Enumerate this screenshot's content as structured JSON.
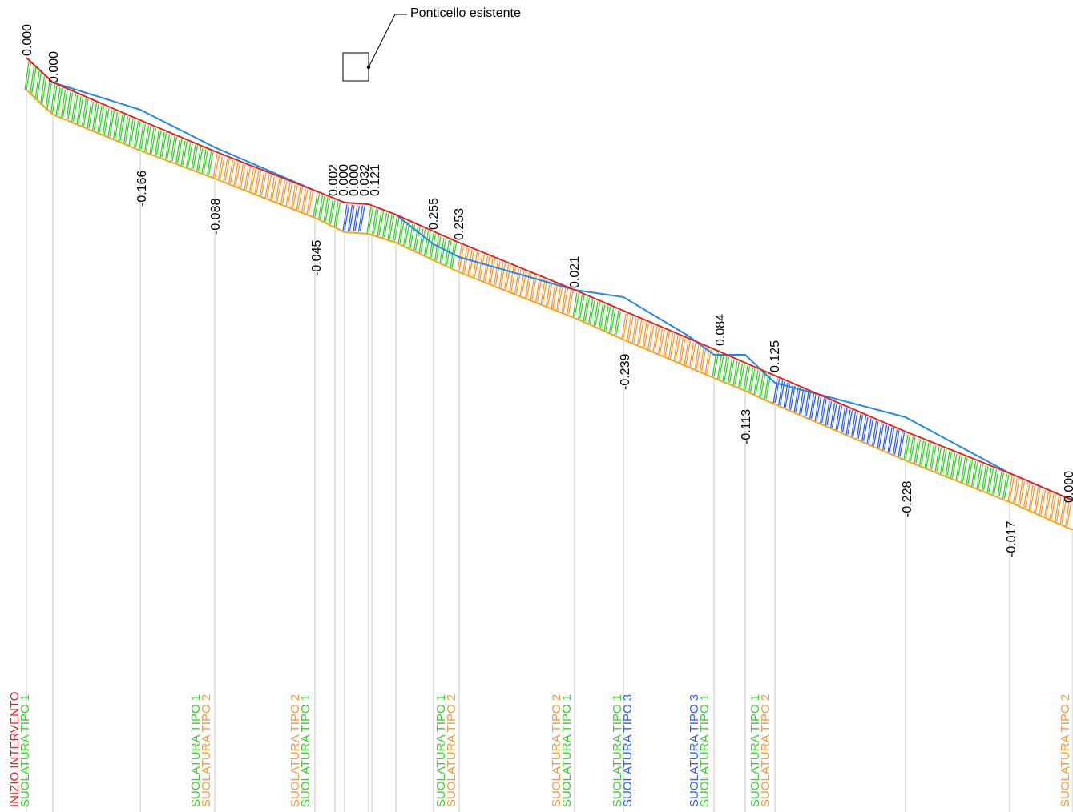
{
  "callout": {
    "label": "Ponticello esistente"
  },
  "colors": {
    "design_line": "#e8201a",
    "existing_line": "#1e88f0",
    "bottom_line": "#f3a41b",
    "tipo1": "#37d12a",
    "tipo2": "#f79a36",
    "tipo3": "#2f5ff2",
    "start": "#e8201a",
    "guide": "#cfcfcf"
  },
  "upper_values": [
    "0.000",
    "0.000",
    "0.002",
    "0.000",
    "0.000",
    "0.032",
    "0.121",
    "0.255",
    "0.253",
    "0.021",
    "0.084",
    "0.125",
    "0.000"
  ],
  "lower_values": [
    "-0.166",
    "-0.088",
    "-0.045",
    "-0.239",
    "-0.113",
    "-0.228",
    "-0.017"
  ],
  "bottom_labels": [
    {
      "lines": [
        {
          "text": "INIZIO INTERVENTO",
          "color": "start"
        },
        {
          "text": "SUOLATURA TIPO 1",
          "color": "tipo1"
        }
      ]
    },
    {
      "lines": [
        {
          "text": "SUOLATURA TIPO 1",
          "color": "tipo1"
        },
        {
          "text": "SUOLATURA TIPO 2",
          "color": "tipo2"
        }
      ]
    },
    {
      "lines": [
        {
          "text": "SUOLATURA TIPO 2",
          "color": "tipo2"
        },
        {
          "text": "SUOLATURA TIPO 1",
          "color": "tipo1"
        }
      ]
    },
    {
      "lines": [
        {
          "text": "SUOLATURA TIPO 1",
          "color": "tipo1"
        },
        {
          "text": "SUOLATURA TIPO 2",
          "color": "tipo2"
        }
      ]
    },
    {
      "lines": [
        {
          "text": "SUOLATURA TIPO 2",
          "color": "tipo2"
        },
        {
          "text": "SUOLATURA TIPO 1",
          "color": "tipo1"
        }
      ]
    },
    {
      "lines": [
        {
          "text": "SUOLATURA TIPO 1",
          "color": "tipo1"
        },
        {
          "text": "SUOLATURA TIPO 3",
          "color": "tipo3"
        }
      ]
    },
    {
      "lines": [
        {
          "text": "SUOLATURA TIPO 3",
          "color": "tipo3"
        },
        {
          "text": "SUOLATURA TIPO 1",
          "color": "tipo1"
        }
      ]
    },
    {
      "lines": [
        {
          "text": "SUOLATURA TIPO 1",
          "color": "tipo1"
        },
        {
          "text": "SUOLATURA TIPO 2",
          "color": "tipo2"
        }
      ]
    },
    {
      "lines": [
        {
          "text": "SUOLATURA TIPO 2",
          "color": "tipo2"
        }
      ]
    }
  ],
  "segments": [
    "tipo1",
    "tipo2",
    "tipo1",
    "tipo3",
    "tipo1",
    "tipo2",
    "tipo1",
    "tipo2",
    "tipo1",
    "tipo3",
    "tipo1",
    "tipo2"
  ]
}
